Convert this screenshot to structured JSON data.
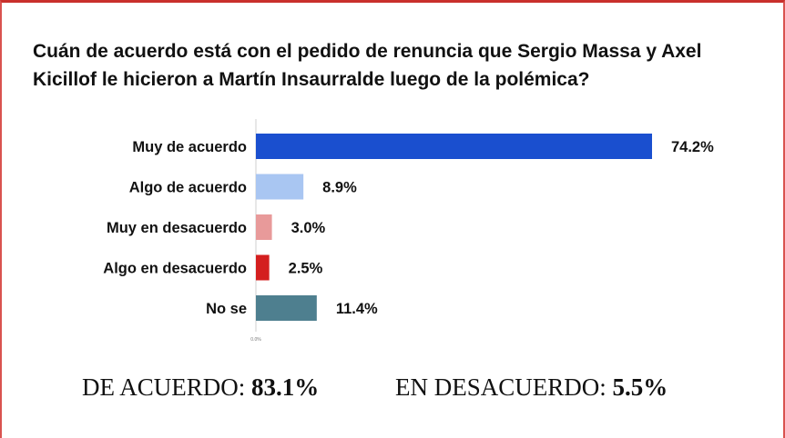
{
  "chart_data": {
    "type": "bar",
    "orientation": "horizontal",
    "title": "Cuán de acuerdo está con el pedido de renuncia que Sergio Massa y Axel Kicillof le hicieron a Martín Insaurralde luego de la polémica?",
    "categories": [
      "Muy de acuerdo",
      "Algo de acuerdo",
      "Muy en desacuerdo",
      "Algo en desacuerdo",
      "No se"
    ],
    "values": [
      74.2,
      8.9,
      3.0,
      2.5,
      11.4
    ],
    "value_labels": [
      "74.2%",
      "8.9%",
      "3.0%",
      "2.5%",
      "11.4%"
    ],
    "colors": [
      "#1a4fcf",
      "#a9c6f2",
      "#e89a9a",
      "#d41f1f",
      "#4e7f8f"
    ],
    "x_tick_label": "0.0%",
    "xlim": [
      0,
      100
    ],
    "grid": false,
    "legend": "none"
  },
  "summary": {
    "agree_label": "DE ACUERDO:",
    "agree_value": "83.1%",
    "disagree_label": "EN DESACUERDO:",
    "disagree_value": "5.5%"
  }
}
